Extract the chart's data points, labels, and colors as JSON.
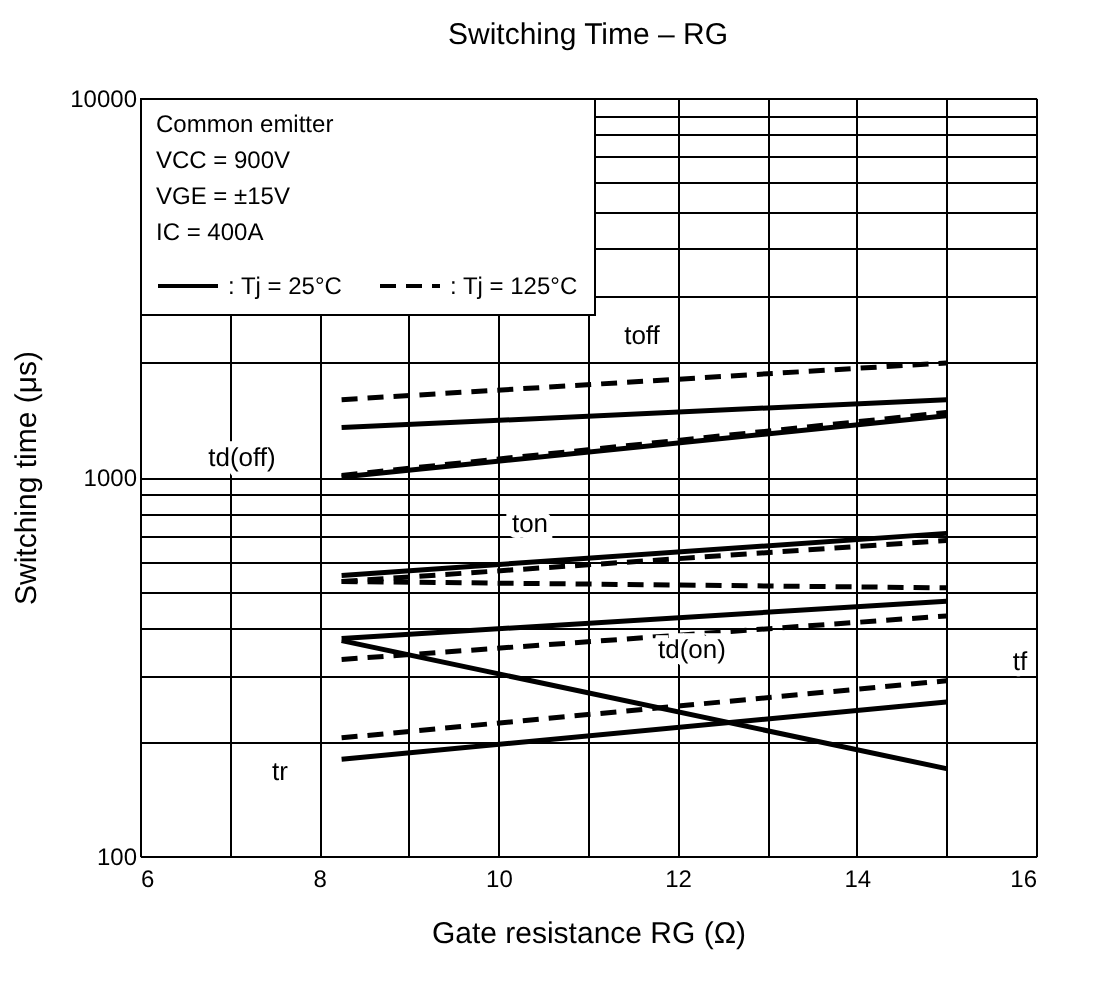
{
  "chart_data": {
    "type": "line",
    "title": "Switching Time – RG",
    "xlabel": "Gate resistance   RG   (Ω)",
    "ylabel": "Switching time   (μs)",
    "log": "y",
    "grid": true,
    "legend": "top left",
    "xlim": [
      6,
      16
    ],
    "xticks": [
      6,
      {
        "value": 7,
        "label": null
      },
      8,
      {
        "value": 9,
        "label": null
      },
      10,
      {
        "value": 11,
        "label": null
      },
      12,
      {
        "value": 13,
        "label": null
      },
      14,
      {
        "value": 15,
        "label": null
      },
      16
    ],
    "ylim": [
      100,
      10000
    ],
    "yticks": [
      100,
      {
        "value": 200,
        "label": null
      },
      {
        "value": 300,
        "label": null
      },
      {
        "value": 400,
        "label": null
      },
      {
        "value": 500,
        "label": null
      },
      {
        "value": 600,
        "label": null
      },
      {
        "value": 700,
        "label": null
      },
      {
        "value": 800,
        "label": null
      },
      {
        "value": 900,
        "label": null
      },
      1000,
      {
        "value": 2000,
        "label": null
      },
      {
        "value": 3000,
        "label": null
      },
      {
        "value": 4000,
        "label": null
      },
      {
        "value": 5000,
        "label": null
      },
      {
        "value": 6000,
        "label": null
      },
      {
        "value": 7000,
        "label": null
      },
      {
        "value": 8000,
        "label": null
      },
      {
        "value": 9000,
        "label": null
      },
      10000
    ],
    "x": [
      8.25,
      15
    ],
    "series": [
      {
        "name": ": Tj = 25°C",
        "color": "#000000",
        "line_style": "solid",
        "values": [
          1350,
          1600
        ]
      },
      {
        "name": ": Tj = 125°C",
        "color": "#000000",
        "line_style": "dashed",
        "values": [
          1600,
          2000
        ]
      },
      {
        "color": "#000000",
        "line_style": "solid",
        "values": [
          1000,
          1450
        ]
      },
      {
        "color": "#000000",
        "line_style": "dashed",
        "values": [
          1010,
          1480
        ]
      },
      {
        "color": "#000000",
        "line_style": "solid",
        "values": [
          550,
          710
        ]
      },
      {
        "color": "#000000",
        "line_style": "dashed",
        "values": [
          530,
          680
        ]
      },
      {
        "color": "#000000",
        "line_style": "solid",
        "values": [
          375,
          470
        ]
      },
      {
        "color": "#000000",
        "line_style": "dashed",
        "values": [
          330,
          430
        ]
      },
      {
        "color": "#000000",
        "line_style": "solid",
        "values": [
          370,
          170
        ]
      },
      {
        "color": "#000000",
        "line_style": "dashed",
        "values": [
          530,
          510
        ]
      },
      {
        "color": "#000000",
        "line_style": "solid",
        "values": [
          180,
          255
        ]
      },
      {
        "color": "#000000",
        "line_style": "dashed",
        "values": [
          205,
          290
        ]
      }
    ],
    "annotations": [
      "Common emitter",
      "VCC = 900V",
      "VGE =  ±15V",
      "IC = 400A",
      "toff",
      "td(off)",
      "ton",
      "td(on)",
      "tr",
      "tf"
    ]
  }
}
